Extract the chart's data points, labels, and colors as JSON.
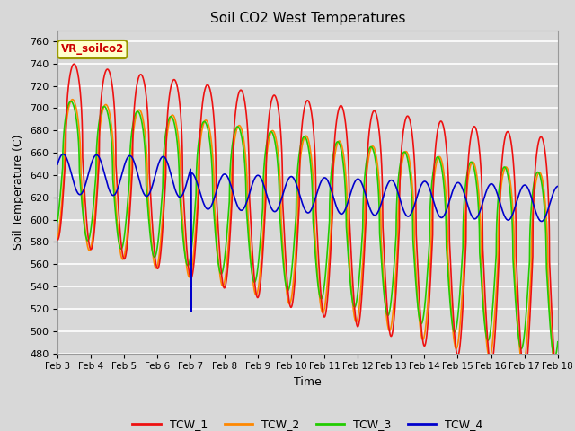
{
  "title": "Soil CO2 West Temperatures",
  "xlabel": "Time",
  "ylabel": "Soil Temperature (C)",
  "ylim": [
    480,
    770
  ],
  "yticks": [
    480,
    500,
    520,
    540,
    560,
    580,
    600,
    620,
    640,
    660,
    680,
    700,
    720,
    740,
    760
  ],
  "background_color": "#d8d8d8",
  "plot_bg_color": "#d8d8d8",
  "annotation_text": "VR_soilco2",
  "annotation_bg": "#ffffcc",
  "annotation_border": "#999900",
  "annotation_text_color": "#cc0000",
  "colors": {
    "TCW_1": "#ee1111",
    "TCW_2": "#ff8800",
    "TCW_3": "#22cc00",
    "TCW_4": "#0000cc"
  },
  "legend_entries": [
    "TCW_1",
    "TCW_2",
    "TCW_3",
    "TCW_4"
  ],
  "x_tick_labels": [
    "Feb 3",
    "Feb 4",
    "Feb 5",
    "Feb 6",
    "Feb 7",
    "Feb 8",
    "Feb 9",
    "Feb 10",
    "Feb 11",
    "Feb 12",
    "Feb 13",
    "Feb 14",
    "Feb 15",
    "Feb 16",
    "Feb 17",
    "Feb 18"
  ],
  "line_width": 1.2,
  "figsize": [
    6.4,
    4.8
  ],
  "dpi": 100
}
